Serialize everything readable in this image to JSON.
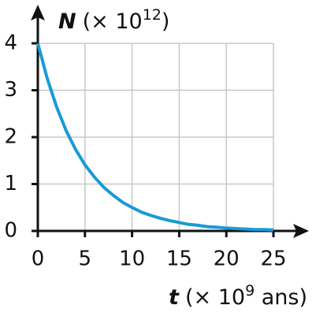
{
  "chart_data": {
    "type": "line",
    "ylabel_symbol": "N",
    "ylabel_unit": "(× 10",
    "ylabel_exponent": "12",
    "ylabel_close": ")",
    "xlabel_symbol": "t",
    "xlabel_unit": "(× 10",
    "xlabel_exponent": "9",
    "xlabel_close": " ans)",
    "x": [
      0,
      1,
      2,
      3,
      4,
      5,
      6,
      7,
      8,
      9,
      10,
      11,
      12,
      13,
      14,
      15,
      16,
      17,
      18,
      19,
      20,
      21,
      22,
      23,
      24,
      25
    ],
    "series": [
      {
        "color": "#1a9ad6",
        "values": [
          4,
          3.25,
          2.64,
          2.14,
          1.74,
          1.41,
          1.15,
          0.93,
          0.76,
          0.61,
          0.5,
          0.4,
          0.33,
          0.27,
          0.22,
          0.18,
          0.14,
          0.12,
          0.09,
          0.08,
          0.06,
          0.05,
          0.04,
          0.03,
          0.03,
          0.02
        ]
      }
    ],
    "xlim": [
      0,
      25
    ],
    "ylim": [
      0,
      4
    ],
    "xticks": [
      0,
      5,
      10,
      15,
      20,
      25
    ],
    "yticks": [
      0,
      1,
      2,
      3,
      4
    ],
    "grid": true
  }
}
